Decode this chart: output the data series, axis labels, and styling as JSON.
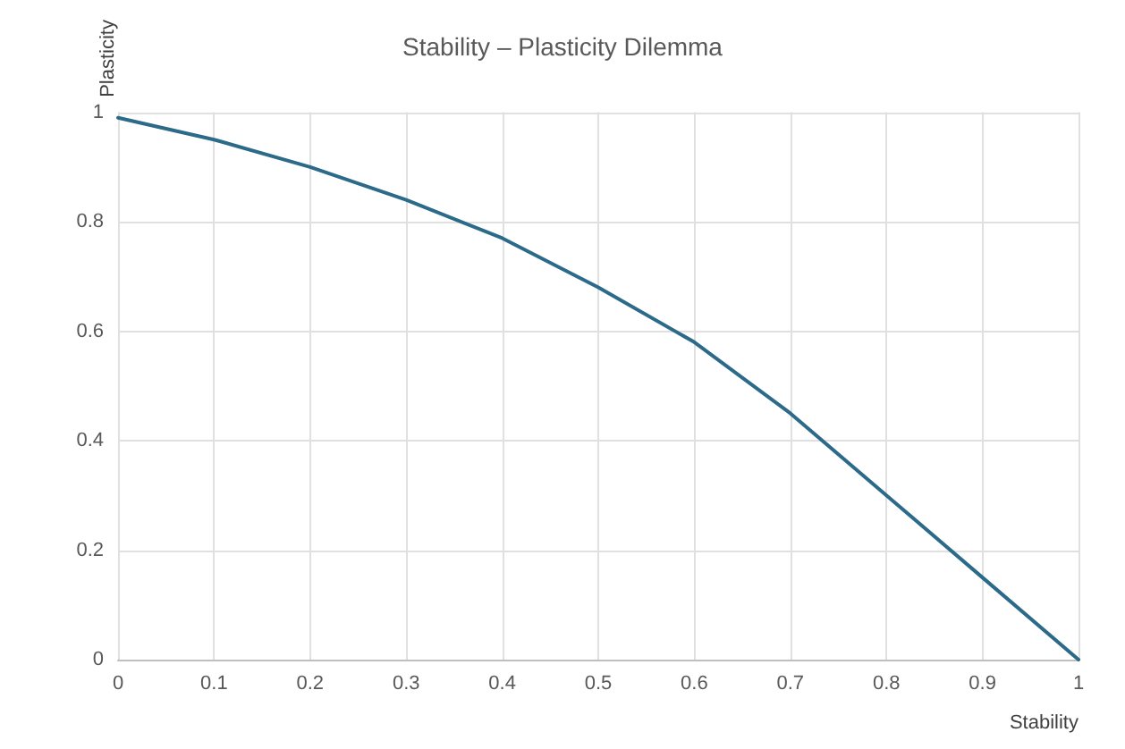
{
  "chart_data": {
    "type": "line",
    "title": "Stability – Plasticity Dilemma",
    "xlabel": "Stability",
    "ylabel": "Plasticity",
    "x": [
      0,
      0.1,
      0.2,
      0.3,
      0.4,
      0.5,
      0.6,
      0.7,
      0.8,
      0.9,
      1
    ],
    "series": [
      {
        "color": "#2b6a89",
        "values": [
          0.99,
          0.95,
          0.9,
          0.84,
          0.77,
          0.68,
          0.58,
          0.45,
          0.3,
          0.15,
          0
        ]
      }
    ],
    "xlim": [
      0,
      1
    ],
    "xticks": [
      0,
      0.1,
      0.2,
      0.3,
      0.4,
      0.5,
      0.6,
      0.7,
      0.8,
      0.9,
      1
    ],
    "ylim": [
      0,
      1
    ],
    "yticks": [
      0,
      0.2,
      0.4,
      0.6,
      0.8,
      1
    ],
    "grid": true,
    "marker": "none",
    "line_style": "solid"
  }
}
